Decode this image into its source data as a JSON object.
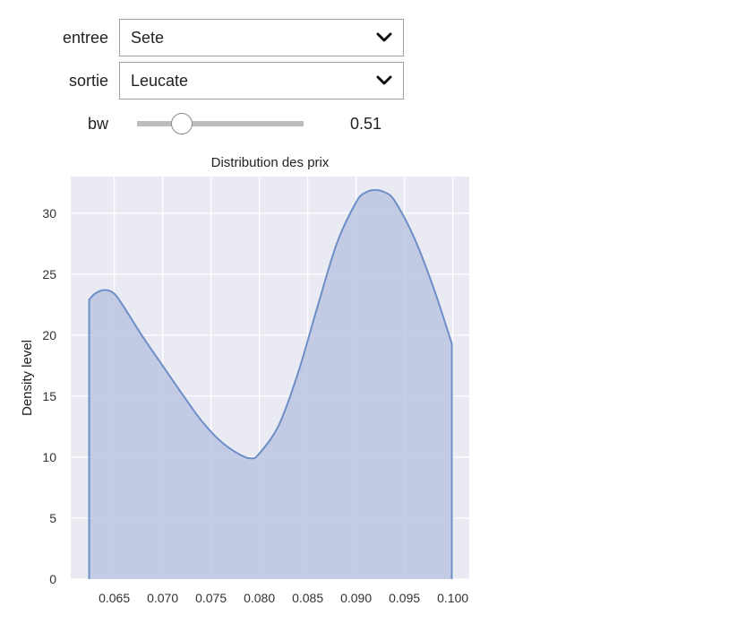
{
  "controls": {
    "entree": {
      "label": "entree",
      "value": "Sete"
    },
    "sortie": {
      "label": "sortie",
      "value": "Leucate"
    },
    "bw": {
      "label": "bw",
      "value": "0.51",
      "fraction": 0.27
    }
  },
  "icons": {
    "dropdown": "chevron-down-icon"
  },
  "colors": {
    "plot_bg": "#eaeaf2",
    "grid": "#ffffff",
    "line": "#6d8ec7",
    "fill": "#b9c3e0"
  },
  "chart_data": {
    "type": "area",
    "title": "Distribution des prix",
    "xlabel": "",
    "ylabel": "Density level",
    "xlim": [
      0.0605,
      0.1017
    ],
    "ylim": [
      0,
      33
    ],
    "x_ticks": [
      "0.065",
      "0.070",
      "0.075",
      "0.080",
      "0.085",
      "0.090",
      "0.095",
      "0.100"
    ],
    "y_ticks": [
      "0",
      "5",
      "10",
      "15",
      "20",
      "25",
      "30"
    ],
    "grid": true,
    "legend": "none",
    "x": [
      0.0624,
      0.063,
      0.064,
      0.065,
      0.066,
      0.068,
      0.07,
      0.072,
      0.074,
      0.076,
      0.078,
      0.0792,
      0.08,
      0.082,
      0.084,
      0.086,
      0.088,
      0.09,
      0.091,
      0.092,
      0.093,
      0.094,
      0.096,
      0.098,
      0.0999
    ],
    "y": [
      22.9,
      23.4,
      23.7,
      23.4,
      22.3,
      19.8,
      17.5,
      15.2,
      13.0,
      11.3,
      10.2,
      9.9,
      10.3,
      12.6,
      16.9,
      22.3,
      27.5,
      30.9,
      31.7,
      31.9,
      31.7,
      31.0,
      28.0,
      23.9,
      19.3
    ]
  }
}
